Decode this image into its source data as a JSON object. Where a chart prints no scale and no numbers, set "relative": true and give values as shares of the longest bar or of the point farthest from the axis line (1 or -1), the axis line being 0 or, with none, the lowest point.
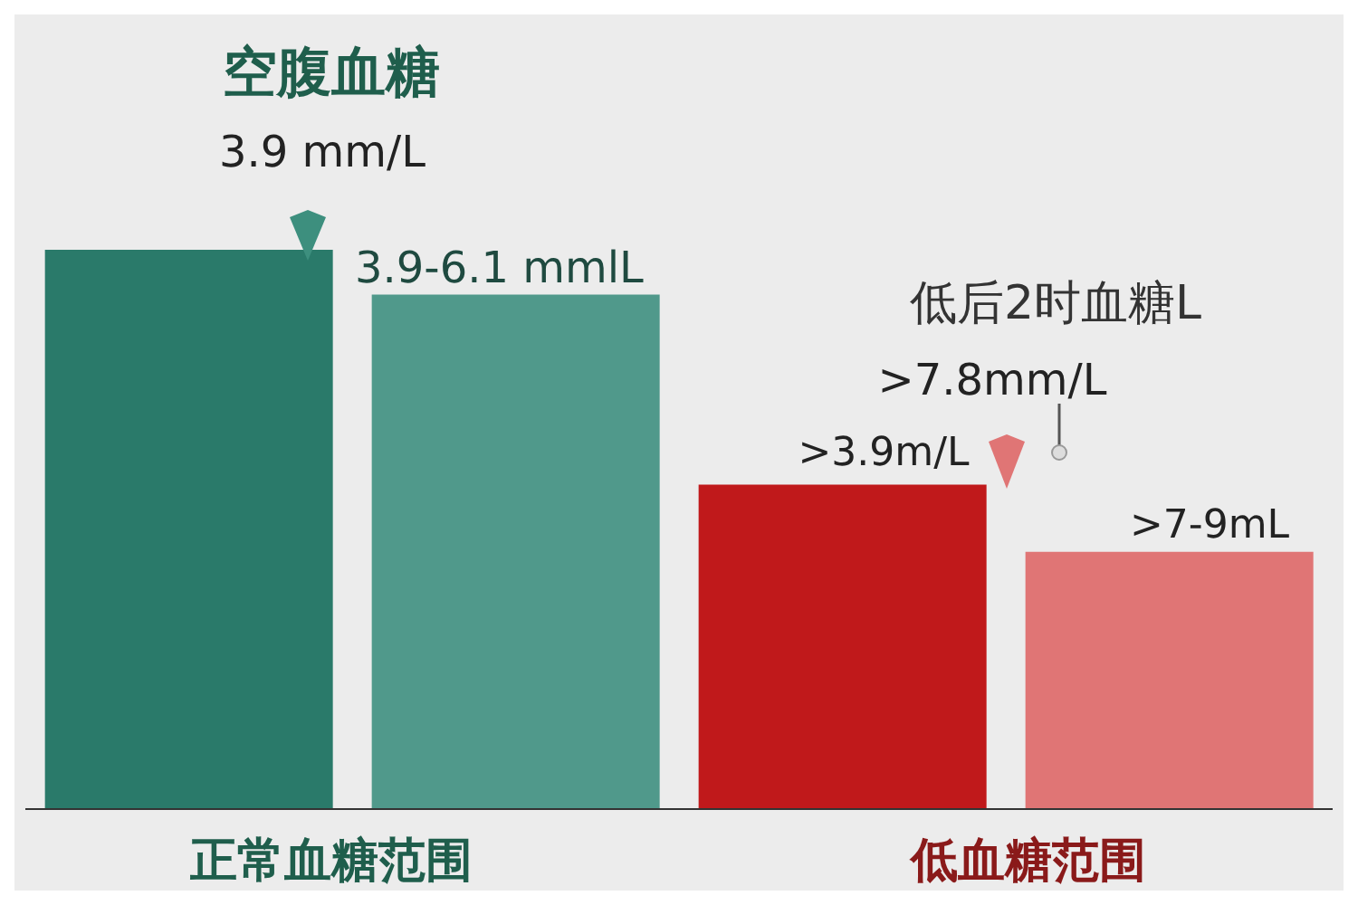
{
  "chart_data": {
    "type": "bar",
    "relative": true,
    "categories": [
      null,
      null,
      null,
      null
    ],
    "values": [
      1,
      0.92,
      0.58,
      0.46
    ],
    "colors": [
      "#2a7a6a",
      "#50998b",
      "#c0191b",
      "#e07575"
    ],
    "annotations": [
      "空腹血糖",
      "3.9 mm/L",
      "3.9-6.1 mmlL",
      "低后2时血糖L",
      ">7.8mm/L",
      ">3.9m/L",
      ">7-9mL",
      "正常血糖范围",
      "低血糖范围"
    ]
  }
}
